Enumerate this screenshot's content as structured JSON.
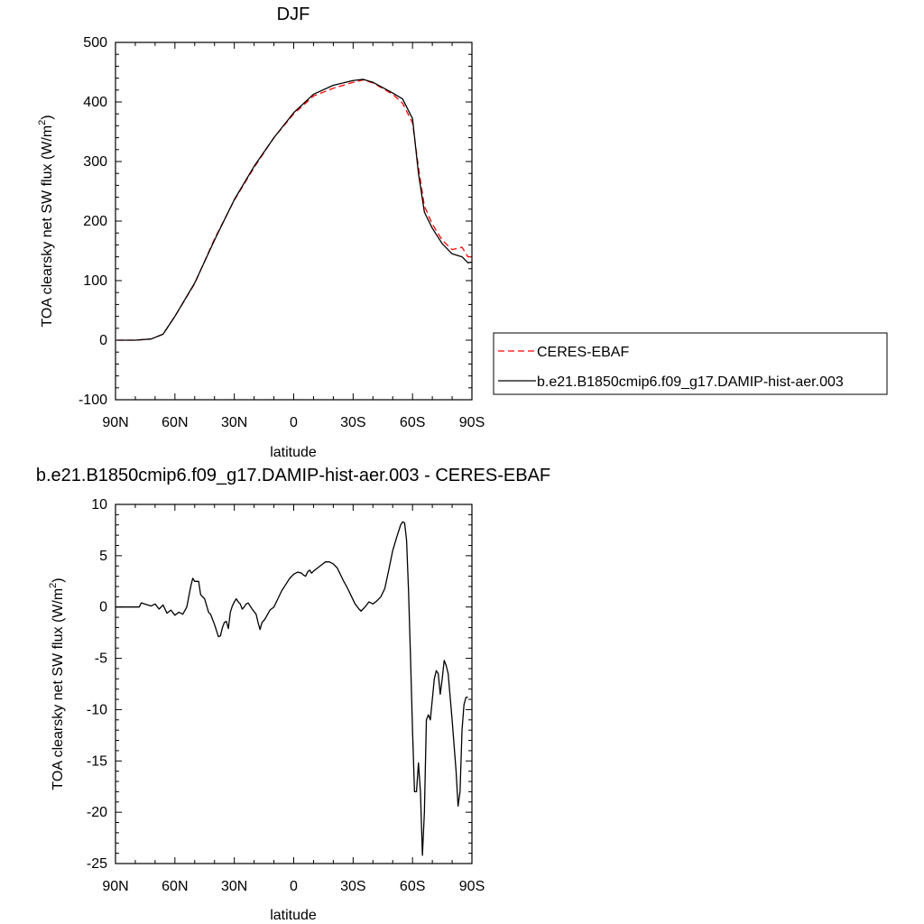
{
  "chart_data": [
    {
      "type": "line",
      "title": "DJF",
      "xlabel": "latitude",
      "ylabel": "TOA clearsky net SW flux (W/m",
      "ylabel_sup": "2",
      "ylabel_close": ")",
      "xlim": [
        -90,
        90
      ],
      "ylim": [
        -100,
        500
      ],
      "x_ticks": [
        {
          "value": -90,
          "label": "90N"
        },
        {
          "value": -60,
          "label": "60N"
        },
        {
          "value": -30,
          "label": "30N"
        },
        {
          "value": 0,
          "label": "0"
        },
        {
          "value": 30,
          "label": "30S"
        },
        {
          "value": 60,
          "label": "60S"
        },
        {
          "value": 90,
          "label": "90S"
        }
      ],
      "y_ticks": [
        -100,
        0,
        100,
        200,
        300,
        400,
        500
      ],
      "legend_position": "right",
      "series": [
        {
          "name": "CERES-EBAF",
          "color": "#ff0000",
          "dash": "dashed",
          "points": [
            [
              -89,
              0
            ],
            [
              -80,
              0
            ],
            [
              -72,
              2
            ],
            [
              -66,
              10
            ],
            [
              -60,
              40
            ],
            [
              -50,
              95
            ],
            [
              -40,
              170
            ],
            [
              -30,
              235
            ],
            [
              -20,
              290
            ],
            [
              -10,
              340
            ],
            [
              0,
              380
            ],
            [
              10,
              410
            ],
            [
              20,
              423
            ],
            [
              30,
              433
            ],
            [
              35,
              437
            ],
            [
              40,
              432
            ],
            [
              50,
              413
            ],
            [
              55,
              398
            ],
            [
              60,
              365
            ],
            [
              63,
              290
            ],
            [
              66,
              225
            ],
            [
              70,
              195
            ],
            [
              75,
              168
            ],
            [
              80,
              152
            ],
            [
              85,
              156
            ],
            [
              88,
              140
            ],
            [
              90,
              140
            ]
          ]
        },
        {
          "name": "b.e21.B1850cmip6.f09_g17.DAMIP-hist-aer.003",
          "color": "#000000",
          "dash": "solid",
          "points": [
            [
              -89,
              0
            ],
            [
              -80,
              0
            ],
            [
              -72,
              2
            ],
            [
              -66,
              10
            ],
            [
              -60,
              40
            ],
            [
              -50,
              96
            ],
            [
              -40,
              168
            ],
            [
              -30,
              236
            ],
            [
              -20,
              292
            ],
            [
              -10,
              340
            ],
            [
              0,
              382
            ],
            [
              10,
              413
            ],
            [
              20,
              428
            ],
            [
              30,
              436
            ],
            [
              35,
              438
            ],
            [
              40,
              433
            ],
            [
              50,
              415
            ],
            [
              55,
              405
            ],
            [
              60,
              372
            ],
            [
              63,
              280
            ],
            [
              66,
              215
            ],
            [
              70,
              188
            ],
            [
              75,
              162
            ],
            [
              80,
              145
            ],
            [
              85,
              140
            ],
            [
              88,
              130
            ],
            [
              90,
              131
            ]
          ]
        }
      ]
    },
    {
      "type": "line",
      "title": "b.e21.B1850cmip6.f09_g17.DAMIP-hist-aer.003 - CERES-EBAF",
      "xlabel": "latitude",
      "ylabel": "TOA clearsky net SW flux (W/m",
      "ylabel_sup": "2",
      "ylabel_close": ")",
      "xlim": [
        -90,
        90
      ],
      "ylim": [
        -25,
        10
      ],
      "x_ticks": [
        {
          "value": -90,
          "label": "90N"
        },
        {
          "value": -60,
          "label": "60N"
        },
        {
          "value": -30,
          "label": "30N"
        },
        {
          "value": 0,
          "label": "0"
        },
        {
          "value": 30,
          "label": "30S"
        },
        {
          "value": 60,
          "label": "60S"
        },
        {
          "value": 90,
          "label": "90S"
        }
      ],
      "y_ticks": [
        -25,
        -20,
        -15,
        -10,
        -5,
        0,
        5,
        10
      ],
      "series": [
        {
          "color": "#000000",
          "dash": "solid",
          "points": [
            [
              -90,
              0
            ],
            [
              -78,
              0
            ],
            [
              -77,
              0.4
            ],
            [
              -72,
              0.1
            ],
            [
              -70,
              0.3
            ],
            [
              -68,
              -0.2
            ],
            [
              -66,
              0.2
            ],
            [
              -64,
              -0.6
            ],
            [
              -62,
              -0.3
            ],
            [
              -60,
              -0.8
            ],
            [
              -58,
              -0.5
            ],
            [
              -56,
              -0.7
            ],
            [
              -54,
              0
            ],
            [
              -53,
              1
            ],
            [
              -52,
              2
            ],
            [
              -51,
              2.8
            ],
            [
              -50,
              2.5
            ],
            [
              -48,
              2.5
            ],
            [
              -47,
              1.2
            ],
            [
              -45,
              0.8
            ],
            [
              -43,
              -0.5
            ],
            [
              -42,
              -0.7
            ],
            [
              -40,
              -1.7
            ],
            [
              -38,
              -2.9
            ],
            [
              -37,
              -2.8
            ],
            [
              -36,
              -2
            ],
            [
              -35,
              -1.5
            ],
            [
              -34,
              -1.4
            ],
            [
              -33,
              -2.1
            ],
            [
              -32,
              -0.5
            ],
            [
              -31,
              0.1
            ],
            [
              -30,
              0.5
            ],
            [
              -29,
              0.8
            ],
            [
              -28,
              0.5
            ],
            [
              -27,
              0.3
            ],
            [
              -26,
              -0.2
            ],
            [
              -25,
              0
            ],
            [
              -24,
              0.3
            ],
            [
              -23,
              0.4
            ],
            [
              -21,
              -0.2
            ],
            [
              -19,
              -0.7
            ],
            [
              -18,
              -1.5
            ],
            [
              -17,
              -2.2
            ],
            [
              -16,
              -1.5
            ],
            [
              -15,
              -1.3
            ],
            [
              -14,
              -1
            ],
            [
              -12,
              -0.3
            ],
            [
              -10,
              0
            ],
            [
              -8,
              0.8
            ],
            [
              -6,
              1.6
            ],
            [
              -4,
              2.2
            ],
            [
              -2,
              2.8
            ],
            [
              0,
              3.2
            ],
            [
              2,
              3.4
            ],
            [
              4,
              3.3
            ],
            [
              5,
              3.1
            ],
            [
              6,
              3.0
            ],
            [
              7,
              3.4
            ],
            [
              8,
              3.6
            ],
            [
              9,
              3.3
            ],
            [
              10,
              3.5
            ],
            [
              12,
              3.8
            ],
            [
              14,
              4.1
            ],
            [
              16,
              4.4
            ],
            [
              18,
              4.4
            ],
            [
              20,
              4.2
            ],
            [
              22,
              3.8
            ],
            [
              23,
              3.4
            ],
            [
              25,
              2.6
            ],
            [
              27,
              1.9
            ],
            [
              29,
              1.1
            ],
            [
              31,
              0.3
            ],
            [
              33,
              -0.2
            ],
            [
              34,
              -0.4
            ],
            [
              35,
              -0.2
            ],
            [
              36,
              0
            ],
            [
              38,
              0.5
            ],
            [
              40,
              0.3
            ],
            [
              42,
              0.6
            ],
            [
              44,
              1.0
            ],
            [
              46,
              1.8
            ],
            [
              48,
              3.6
            ],
            [
              50,
              5.5
            ],
            [
              52,
              6.8
            ],
            [
              54,
              8.0
            ],
            [
              55,
              8.3
            ],
            [
              56,
              8.2
            ],
            [
              57,
              6.5
            ],
            [
              58,
              1.5
            ],
            [
              59,
              -5
            ],
            [
              60,
              -12
            ],
            [
              61,
              -18
            ],
            [
              62,
              -18
            ],
            [
              63,
              -15.2
            ],
            [
              64,
              -18
            ],
            [
              65,
              -24.2
            ],
            [
              66,
              -20
            ],
            [
              67,
              -11
            ],
            [
              68,
              -10.5
            ],
            [
              69,
              -11
            ],
            [
              70,
              -9
            ],
            [
              71,
              -7
            ],
            [
              72,
              -6.2
            ],
            [
              73,
              -6.5
            ],
            [
              74,
              -8.5
            ],
            [
              75,
              -7
            ],
            [
              76,
              -5.2
            ],
            [
              77,
              -5.7
            ],
            [
              78,
              -6.5
            ],
            [
              80,
              -11
            ],
            [
              82,
              -16
            ],
            [
              83,
              -19.4
            ],
            [
              84,
              -18
            ],
            [
              85,
              -12
            ],
            [
              86,
              -9.5
            ],
            [
              87,
              -8.8
            ],
            [
              88,
              -8.8
            ]
          ]
        }
      ]
    }
  ]
}
